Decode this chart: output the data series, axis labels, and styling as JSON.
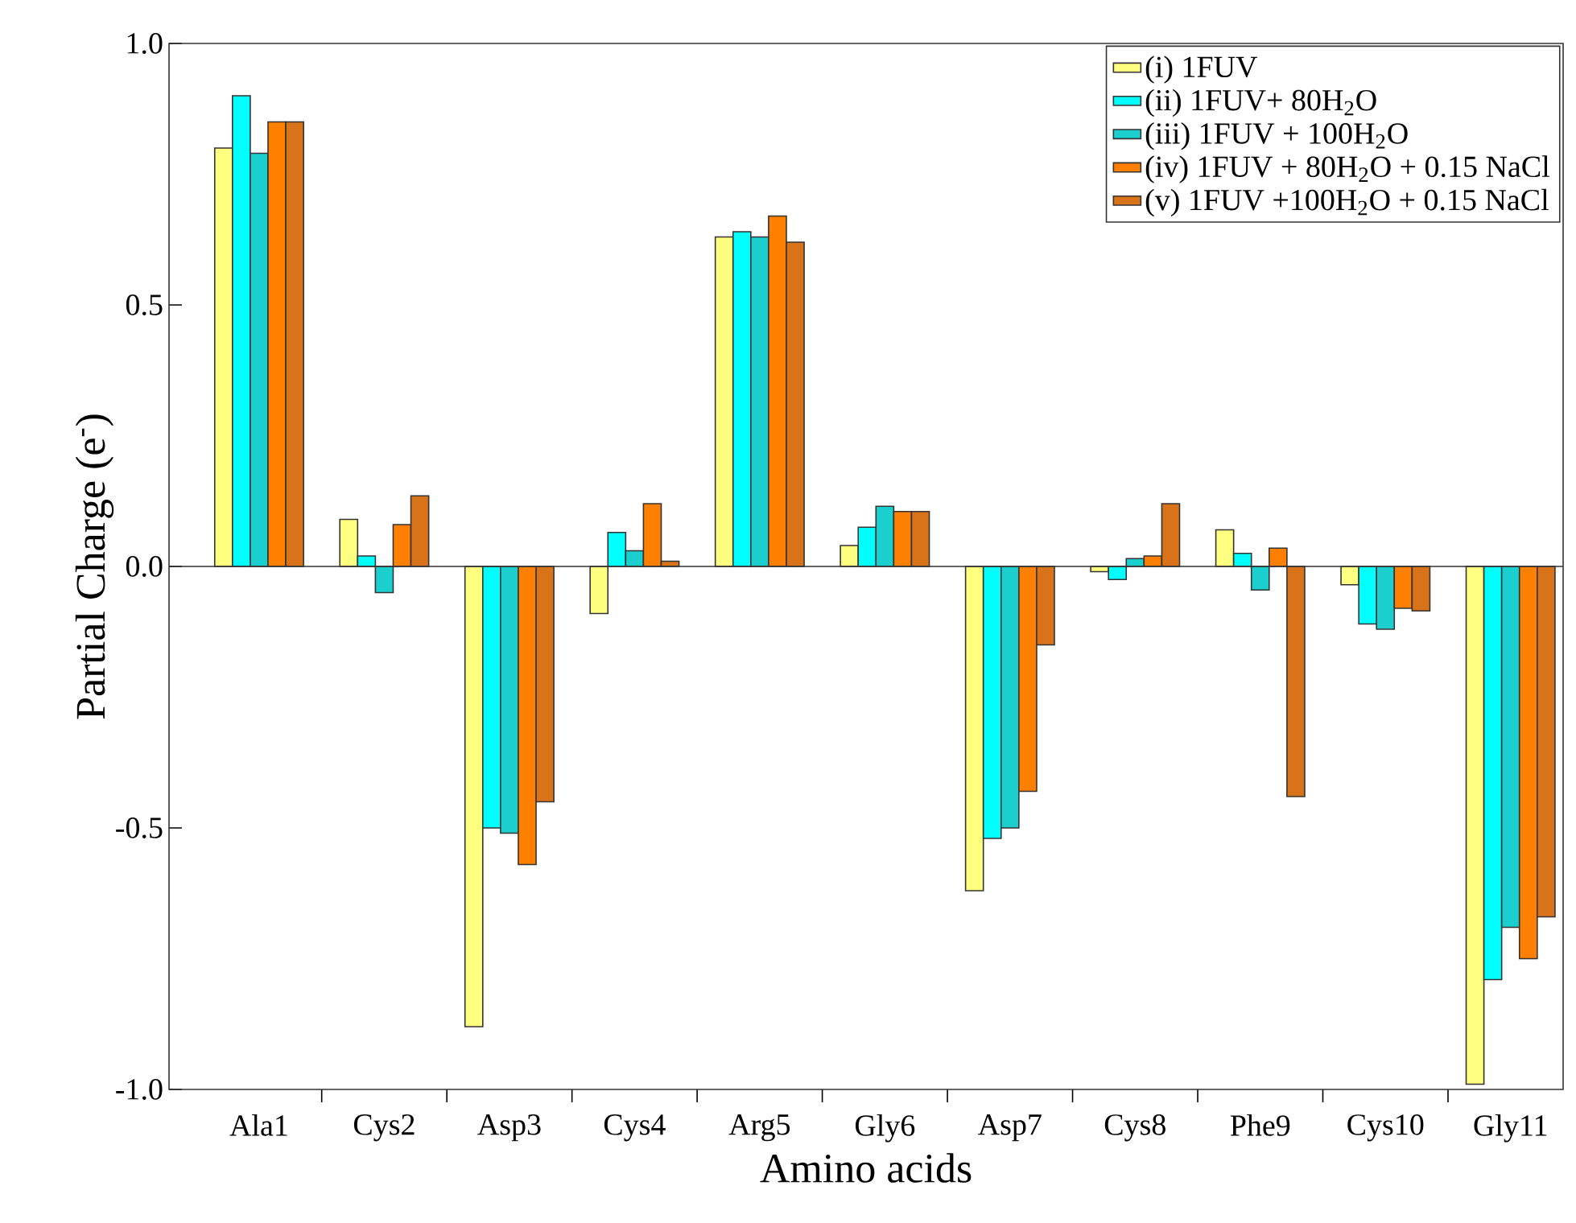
{
  "chart_data": {
    "type": "bar",
    "xlabel": "Amino acids",
    "ylabel": "Partial Charge (e$^{-}$)",
    "categories": [
      "Ala1",
      "Cys2",
      "Asp3",
      "Cys4",
      "Arg5",
      "Gly6",
      "Asp7",
      "Cys8",
      "Phe9",
      "Cys10",
      "Gly11"
    ],
    "series": [
      {
        "name": "(i) 1FUV",
        "color": "#ffff80",
        "values": [
          0.8,
          0.09,
          -0.88,
          -0.09,
          0.63,
          0.04,
          -0.62,
          -0.01,
          0.07,
          -0.035,
          -0.99
        ]
      },
      {
        "name": "(ii) 1FUV+ 80H$_{2}$O",
        "color": "#00ffff",
        "values": [
          0.9,
          0.02,
          -0.5,
          0.065,
          0.64,
          0.075,
          -0.52,
          -0.025,
          0.025,
          -0.11,
          -0.79
        ]
      },
      {
        "name": "(iii) 1FUV + 100H$_{2}$O",
        "color": "#1ccfcf",
        "values": [
          0.79,
          -0.05,
          -0.51,
          0.03,
          0.63,
          0.115,
          -0.5,
          0.015,
          -0.045,
          -0.12,
          -0.69
        ]
      },
      {
        "name": "(iv) 1FUV + 80H$_{2}$O + 0.15 NaCl",
        "color": "#ff8000",
        "values": [
          0.85,
          0.08,
          -0.57,
          0.12,
          0.67,
          0.105,
          -0.43,
          0.02,
          0.035,
          -0.08,
          -0.75
        ]
      },
      {
        "name": "(v) 1FUV +100H$_{2}$O + 0.15 NaCl",
        "color": "#d9731a",
        "values": [
          0.85,
          0.135,
          -0.45,
          0.01,
          0.62,
          0.105,
          -0.15,
          0.12,
          -0.44,
          -0.085,
          -0.67
        ]
      }
    ],
    "ylim": [
      -1,
      1
    ],
    "yticks": [
      {
        "value": -1,
        "label": "-1.0"
      },
      {
        "value": -0.5,
        "label": "-0.5"
      },
      {
        "value": 0,
        "label": "0.0"
      },
      {
        "value": 0.5,
        "label": "0.5"
      },
      {
        "value": 1,
        "label": "1.0"
      }
    ],
    "ref_lines": [
      {
        "axis": "y",
        "value": 0
      }
    ],
    "legend": "top right"
  }
}
